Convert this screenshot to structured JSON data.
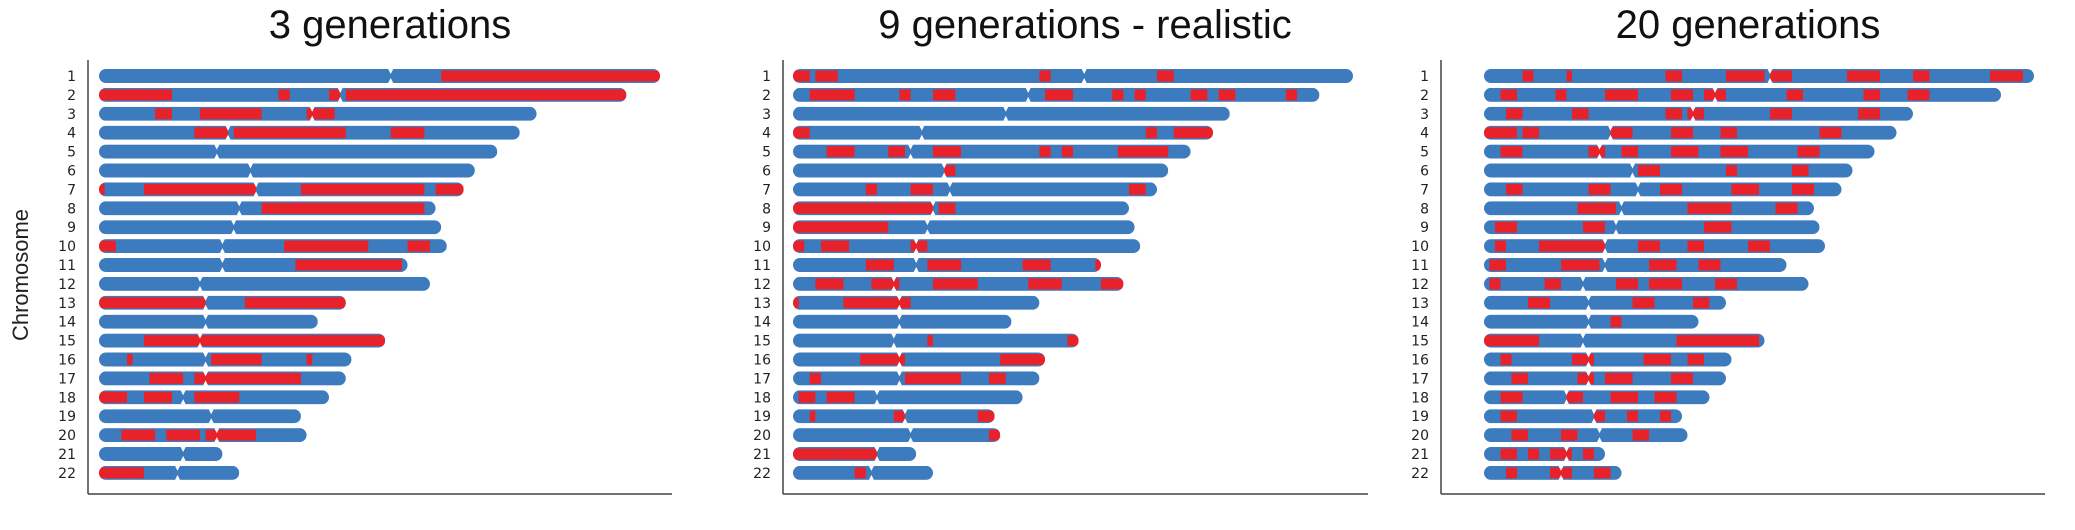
{
  "figure": {
    "ylabel": "Chromosome",
    "colors": {
      "base": "#3d7bbf",
      "segment": "#e8222b",
      "axis": "#444444"
    }
  },
  "chart_data": [
    {
      "type": "bar",
      "title": "3 generations",
      "categories": [
        "1",
        "2",
        "3",
        "4",
        "5",
        "6",
        "7",
        "8",
        "9",
        "10",
        "11",
        "12",
        "13",
        "14",
        "15",
        "16",
        "17",
        "18",
        "19",
        "20",
        "21",
        "22"
      ],
      "length_units": "fraction of chromosome 1 length",
      "lengths": [
        1.0,
        0.94,
        0.78,
        0.75,
        0.71,
        0.67,
        0.65,
        0.6,
        0.61,
        0.62,
        0.55,
        0.59,
        0.44,
        0.39,
        0.51,
        0.45,
        0.44,
        0.41,
        0.36,
        0.37,
        0.22,
        0.25
      ],
      "centromeres": [
        0.52,
        0.43,
        0.38,
        0.23,
        0.21,
        0.27,
        0.28,
        0.25,
        0.24,
        0.22,
        0.22,
        0.18,
        0.19,
        0.19,
        0.18,
        0.19,
        0.19,
        0.15,
        0.2,
        0.21,
        0.15,
        0.14
      ],
      "segments": [
        [
          [
            0.61,
            1.0
          ]
        ],
        [
          [
            0.0,
            0.13
          ],
          [
            0.05,
            0.09
          ],
          [
            0.32,
            0.34
          ],
          [
            0.41,
            0.43
          ],
          [
            0.44,
            0.94
          ]
        ],
        [
          [
            0.1,
            0.13
          ],
          [
            0.18,
            0.29
          ],
          [
            0.37,
            0.42
          ]
        ],
        [
          [
            0.17,
            0.23
          ],
          [
            0.24,
            0.44
          ],
          [
            0.52,
            0.58
          ]
        ],
        [],
        [],
        [
          [
            0.0,
            0.01
          ],
          [
            0.08,
            0.28
          ],
          [
            0.36,
            0.58
          ],
          [
            0.6,
            0.65
          ]
        ],
        [
          [
            0.29,
            0.58
          ]
        ],
        [],
        [
          [
            0.0,
            0.03
          ],
          [
            0.33,
            0.48
          ],
          [
            0.55,
            0.59
          ]
        ],
        [
          [
            0.35,
            0.54
          ]
        ],
        [],
        [
          [
            0.0,
            0.19
          ],
          [
            0.26,
            0.44
          ]
        ],
        [],
        [
          [
            0.08,
            0.51
          ]
        ],
        [
          [
            0.05,
            0.06
          ],
          [
            0.2,
            0.29
          ],
          [
            0.37,
            0.38
          ]
        ],
        [
          [
            0.09,
            0.15
          ],
          [
            0.17,
            0.36
          ]
        ],
        [
          [
            0.0,
            0.05
          ],
          [
            0.08,
            0.13
          ],
          [
            0.17,
            0.25
          ]
        ],
        [],
        [
          [
            0.04,
            0.1
          ],
          [
            0.12,
            0.18
          ],
          [
            0.19,
            0.28
          ]
        ],
        [],
        [
          [
            0.0,
            0.08
          ],
          [
            0.03,
            0.04
          ]
        ]
      ]
    },
    {
      "type": "bar",
      "title": "9 generations - realistic",
      "categories": [
        "1",
        "2",
        "3",
        "4",
        "5",
        "6",
        "7",
        "8",
        "9",
        "10",
        "11",
        "12",
        "13",
        "14",
        "15",
        "16",
        "17",
        "18",
        "19",
        "20",
        "21",
        "22"
      ],
      "length_units": "fraction of chromosome 1 length",
      "lengths": [
        1.0,
        0.94,
        0.78,
        0.75,
        0.71,
        0.67,
        0.65,
        0.6,
        0.61,
        0.62,
        0.55,
        0.59,
        0.44,
        0.39,
        0.51,
        0.45,
        0.44,
        0.41,
        0.36,
        0.37,
        0.22,
        0.25
      ],
      "centromeres": [
        0.52,
        0.42,
        0.38,
        0.23,
        0.21,
        0.27,
        0.28,
        0.25,
        0.24,
        0.22,
        0.22,
        0.18,
        0.19,
        0.19,
        0.18,
        0.19,
        0.19,
        0.15,
        0.2,
        0.21,
        0.15,
        0.14
      ],
      "segments": [
        [
          [
            0.0,
            0.03
          ],
          [
            0.04,
            0.08
          ],
          [
            0.44,
            0.46
          ],
          [
            0.65,
            0.68
          ]
        ],
        [
          [
            0.03,
            0.11
          ],
          [
            0.19,
            0.21
          ],
          [
            0.25,
            0.29
          ],
          [
            0.45,
            0.5
          ],
          [
            0.57,
            0.59
          ],
          [
            0.61,
            0.63
          ],
          [
            0.71,
            0.74
          ],
          [
            0.76,
            0.79
          ],
          [
            0.88,
            0.9
          ]
        ],
        [],
        [
          [
            0.0,
            0.03
          ],
          [
            0.63,
            0.65
          ],
          [
            0.68,
            0.75
          ]
        ],
        [
          [
            0.06,
            0.11
          ],
          [
            0.17,
            0.2
          ],
          [
            0.25,
            0.3
          ],
          [
            0.44,
            0.46
          ],
          [
            0.48,
            0.5
          ],
          [
            0.58,
            0.67
          ]
        ],
        [
          [
            0.27,
            0.29
          ]
        ],
        [
          [
            0.13,
            0.15
          ],
          [
            0.21,
            0.25
          ],
          [
            0.6,
            0.63
          ]
        ],
        [
          [
            0.0,
            0.25
          ],
          [
            0.26,
            0.29
          ]
        ],
        [
          [
            0.0,
            0.17
          ]
        ],
        [
          [
            0.0,
            0.02
          ],
          [
            0.05,
            0.1
          ],
          [
            0.21,
            0.24
          ]
        ],
        [
          [
            0.13,
            0.18
          ],
          [
            0.24,
            0.3
          ],
          [
            0.41,
            0.46
          ],
          [
            0.54,
            0.55
          ]
        ],
        [
          [
            0.04,
            0.09
          ],
          [
            0.14,
            0.19
          ],
          [
            0.25,
            0.33
          ],
          [
            0.42,
            0.48
          ],
          [
            0.55,
            0.59
          ]
        ],
        [
          [
            0.0,
            0.01
          ],
          [
            0.09,
            0.21
          ]
        ],
        [],
        [
          [
            0.24,
            0.25
          ],
          [
            0.49,
            0.51
          ]
        ],
        [
          [
            0.12,
            0.2
          ],
          [
            0.37,
            0.45
          ]
        ],
        [
          [
            0.03,
            0.05
          ],
          [
            0.2,
            0.3
          ],
          [
            0.35,
            0.38
          ]
        ],
        [
          [
            0.01,
            0.04
          ],
          [
            0.06,
            0.11
          ]
        ],
        [
          [
            0.03,
            0.04
          ],
          [
            0.18,
            0.2
          ],
          [
            0.33,
            0.36
          ]
        ],
        [
          [
            0.35,
            0.37
          ]
        ],
        [
          [
            0.0,
            0.07
          ],
          [
            0.07,
            0.13
          ],
          [
            0.12,
            0.15
          ]
        ],
        [
          [
            0.11,
            0.13
          ]
        ]
      ]
    },
    {
      "type": "bar",
      "title": "20 generations",
      "categories": [
        "1",
        "2",
        "3",
        "4",
        "5",
        "6",
        "7",
        "8",
        "9",
        "10",
        "11",
        "12",
        "13",
        "14",
        "15",
        "16",
        "17",
        "18",
        "19",
        "20",
        "21",
        "22"
      ],
      "length_units": "fraction of chromosome 1 length",
      "lengths": [
        1.0,
        0.94,
        0.78,
        0.75,
        0.71,
        0.67,
        0.65,
        0.6,
        0.61,
        0.62,
        0.55,
        0.59,
        0.44,
        0.39,
        0.51,
        0.45,
        0.44,
        0.41,
        0.36,
        0.37,
        0.22,
        0.25
      ],
      "centromeres": [
        0.52,
        0.42,
        0.38,
        0.23,
        0.21,
        0.27,
        0.28,
        0.25,
        0.24,
        0.22,
        0.22,
        0.18,
        0.19,
        0.19,
        0.18,
        0.19,
        0.19,
        0.15,
        0.2,
        0.21,
        0.15,
        0.14
      ],
      "segments": [
        [
          [
            0.07,
            0.09
          ],
          [
            0.15,
            0.16
          ],
          [
            0.33,
            0.36
          ],
          [
            0.44,
            0.51
          ],
          [
            0.52,
            0.56
          ],
          [
            0.66,
            0.72
          ],
          [
            0.78,
            0.81
          ],
          [
            0.92,
            0.98
          ]
        ],
        [
          [
            0.03,
            0.06
          ],
          [
            0.13,
            0.15
          ],
          [
            0.22,
            0.28
          ],
          [
            0.34,
            0.38
          ],
          [
            0.4,
            0.44
          ],
          [
            0.55,
            0.58
          ],
          [
            0.69,
            0.72
          ],
          [
            0.77,
            0.81
          ]
        ],
        [
          [
            0.04,
            0.07
          ],
          [
            0.16,
            0.19
          ],
          [
            0.33,
            0.36
          ],
          [
            0.37,
            0.4
          ],
          [
            0.52,
            0.56
          ],
          [
            0.68,
            0.72
          ]
        ],
        [
          [
            0.0,
            0.06
          ],
          [
            0.07,
            0.1
          ],
          [
            0.23,
            0.27
          ],
          [
            0.34,
            0.38
          ],
          [
            0.43,
            0.46
          ],
          [
            0.61,
            0.65
          ]
        ],
        [
          [
            0.03,
            0.07
          ],
          [
            0.19,
            0.22
          ],
          [
            0.25,
            0.28
          ],
          [
            0.34,
            0.39
          ],
          [
            0.43,
            0.48
          ],
          [
            0.57,
            0.61
          ]
        ],
        [
          [
            0.28,
            0.32
          ],
          [
            0.44,
            0.46
          ],
          [
            0.56,
            0.59
          ]
        ],
        [
          [
            0.04,
            0.07
          ],
          [
            0.19,
            0.23
          ],
          [
            0.32,
            0.36
          ],
          [
            0.45,
            0.5
          ],
          [
            0.56,
            0.6
          ]
        ],
        [
          [
            0.17,
            0.24
          ],
          [
            0.37,
            0.45
          ],
          [
            0.53,
            0.57
          ]
        ],
        [
          [
            0.02,
            0.06
          ],
          [
            0.18,
            0.22
          ],
          [
            0.4,
            0.45
          ]
        ],
        [
          [
            0.02,
            0.04
          ],
          [
            0.1,
            0.22
          ],
          [
            0.28,
            0.32
          ],
          [
            0.37,
            0.4
          ],
          [
            0.48,
            0.52
          ]
        ],
        [
          [
            0.01,
            0.04
          ],
          [
            0.14,
            0.21
          ],
          [
            0.3,
            0.35
          ],
          [
            0.39,
            0.43
          ]
        ],
        [
          [
            0.01,
            0.03
          ],
          [
            0.11,
            0.14
          ],
          [
            0.24,
            0.28
          ],
          [
            0.3,
            0.36
          ],
          [
            0.42,
            0.46
          ]
        ],
        [
          [
            0.08,
            0.12
          ],
          [
            0.27,
            0.31
          ],
          [
            0.38,
            0.41
          ]
        ],
        [
          [
            0.23,
            0.25
          ]
        ],
        [
          [
            0.0,
            0.1
          ],
          [
            0.35,
            0.5
          ]
        ],
        [
          [
            0.03,
            0.05
          ],
          [
            0.16,
            0.2
          ],
          [
            0.29,
            0.34
          ],
          [
            0.37,
            0.4
          ]
        ],
        [
          [
            0.05,
            0.08
          ],
          [
            0.17,
            0.2
          ],
          [
            0.22,
            0.27
          ],
          [
            0.34,
            0.38
          ]
        ],
        [
          [
            0.03,
            0.07
          ],
          [
            0.15,
            0.18
          ],
          [
            0.23,
            0.28
          ],
          [
            0.31,
            0.35
          ]
        ],
        [
          [
            0.03,
            0.06
          ],
          [
            0.2,
            0.22
          ],
          [
            0.26,
            0.28
          ],
          [
            0.32,
            0.34
          ]
        ],
        [
          [
            0.05,
            0.08
          ],
          [
            0.14,
            0.17
          ],
          [
            0.27,
            0.3
          ]
        ],
        [
          [
            0.03,
            0.06
          ],
          [
            0.08,
            0.1
          ],
          [
            0.12,
            0.16
          ],
          [
            0.18,
            0.2
          ]
        ],
        [
          [
            0.04,
            0.06
          ],
          [
            0.12,
            0.16
          ],
          [
            0.2,
            0.23
          ]
        ]
      ]
    }
  ]
}
